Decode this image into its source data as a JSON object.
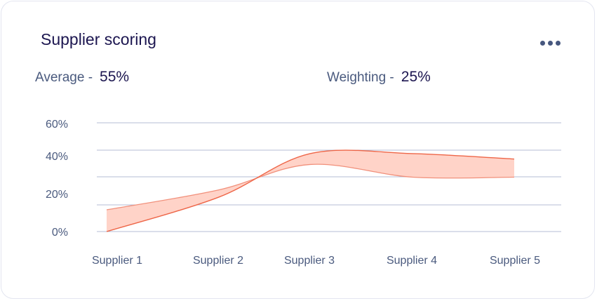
{
  "card": {
    "title": "Supplier scoring",
    "menu_icon": "more-horizontal-icon"
  },
  "stats": {
    "average": {
      "label": "Average -",
      "value": "55%"
    },
    "weighting": {
      "label": "Weighting -",
      "value": "25%"
    }
  },
  "colors": {
    "band_fill": "#ffd3c8",
    "upper_line": "#ee6648",
    "lower_line": "#f1907b",
    "grid": "#b5bdd6"
  },
  "chart_data": {
    "type": "area",
    "categories": [
      "Supplier 1",
      "Supplier 2",
      "Supplier 3",
      "Supplier 4",
      "Supplier 5"
    ],
    "y_ticks": [
      "0%",
      "20%",
      "40%",
      "60%"
    ],
    "ylim": [
      0,
      60
    ],
    "grid": true,
    "series": [
      {
        "values": [
          0,
          19,
          43,
          43,
          40
        ]
      },
      {
        "values": [
          12,
          23,
          37,
          30,
          30
        ]
      }
    ]
  }
}
